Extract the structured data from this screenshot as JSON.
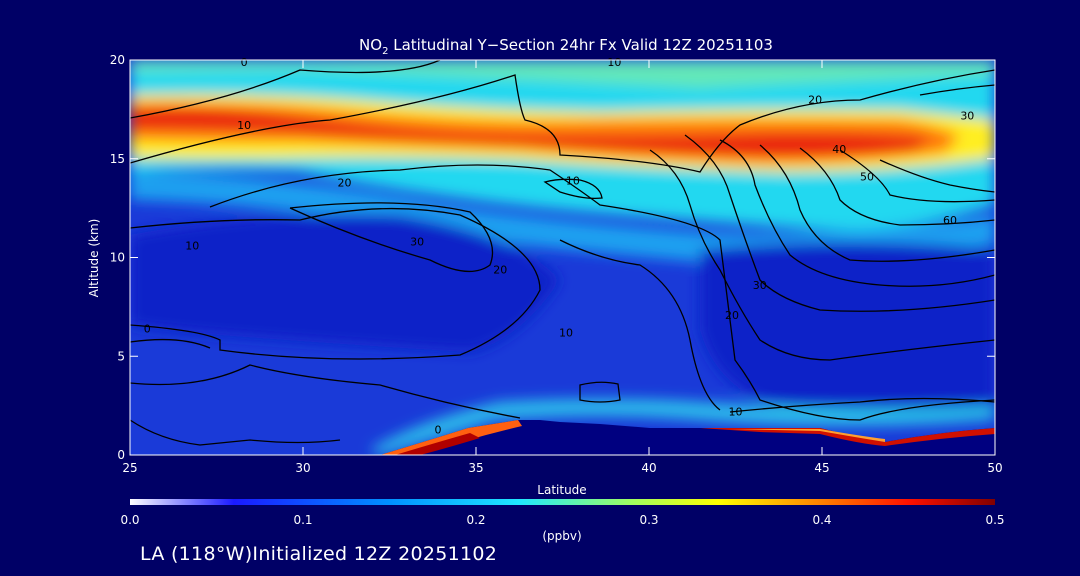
{
  "chart_data": {
    "type": "heatmap",
    "title_prefix": "NO",
    "title_subscript": "2",
    "title_suffix": " Latitudinal Y−Section 24hr  Fx Valid 12Z 20251103",
    "xlabel": "Latitude",
    "ylabel": "Altitude (km)",
    "xlim": [
      25,
      50
    ],
    "ylim": [
      0,
      20
    ],
    "x_ticks": [
      25,
      30,
      35,
      40,
      45,
      50
    ],
    "y_ticks": [
      0,
      5,
      10,
      15,
      20
    ],
    "colorbar": {
      "label": "(ppbv)",
      "range": [
        0.0,
        0.5
      ],
      "ticks": [
        "0.0",
        "0.1",
        "0.2",
        "0.3",
        "0.4",
        "0.5"
      ],
      "colors": [
        "#000080",
        "#0000ff",
        "#0080ff",
        "#00ffff",
        "#80ff80",
        "#ffff00",
        "#ff8000",
        "#ff0000",
        "#800000"
      ]
    },
    "contour_labels": [
      {
        "text": "10",
        "lat": 28.3,
        "alt": 16.7
      },
      {
        "text": "20",
        "lat": 31.2,
        "alt": 13.8
      },
      {
        "text": "10",
        "lat": 26.8,
        "alt": 10.6
      },
      {
        "text": "30",
        "lat": 33.3,
        "alt": 10.8
      },
      {
        "text": "20",
        "lat": 35.7,
        "alt": 9.4
      },
      {
        "text": "10",
        "lat": 37.8,
        "alt": 13.9
      },
      {
        "text": "10",
        "lat": 37.6,
        "alt": 6.2
      },
      {
        "text": "20",
        "lat": 44.8,
        "alt": 18.0
      },
      {
        "text": "30",
        "lat": 49.2,
        "alt": 17.2
      },
      {
        "text": "40",
        "lat": 45.5,
        "alt": 15.5
      },
      {
        "text": "50",
        "lat": 46.3,
        "alt": 14.1
      },
      {
        "text": "60",
        "lat": 48.7,
        "alt": 11.9
      },
      {
        "text": "30",
        "lat": 43.2,
        "alt": 8.6
      },
      {
        "text": "20",
        "lat": 42.4,
        "alt": 7.1
      },
      {
        "text": "10",
        "lat": 42.5,
        "alt": 2.2
      },
      {
        "text": "0",
        "lat": 25.5,
        "alt": 6.4
      },
      {
        "text": "0",
        "lat": 33.9,
        "alt": 1.3
      },
      {
        "text": "10",
        "lat": 39.0,
        "alt": 19.9
      },
      {
        "text": "0",
        "lat": 28.3,
        "alt": 19.9
      }
    ]
  },
  "footer": "LA (118°W)Initialized 12Z 20251102"
}
